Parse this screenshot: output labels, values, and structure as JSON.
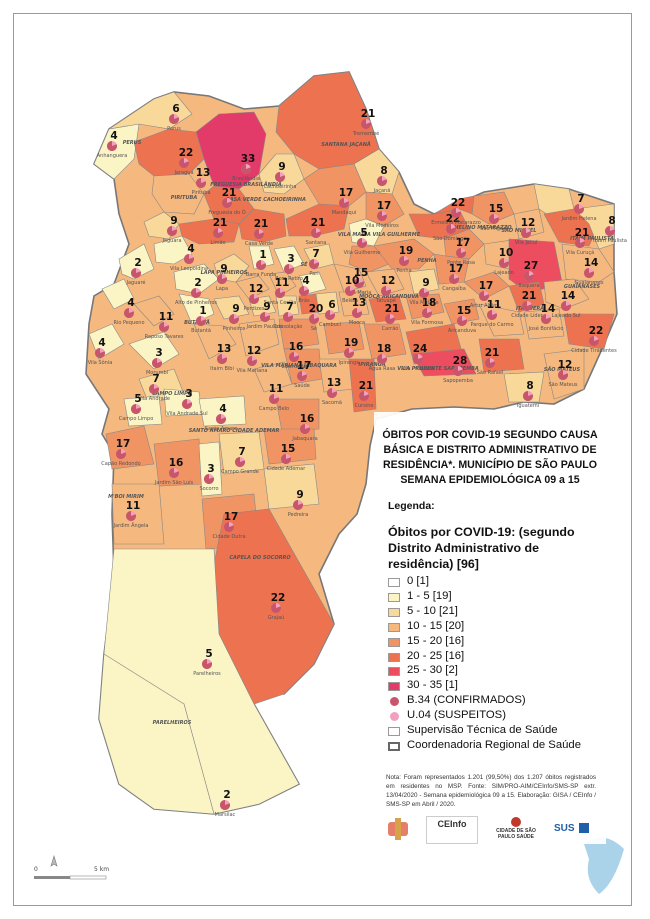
{
  "title": "ÓBITOS POR COVID-19 SEGUNDO CAUSA BÁSICA E DISTRITO ADMINISTRATIVO DE RESIDÊNCIA*. MUNICÍPIO DE SÃO PAULO SEMANA EPIDEMIOLÓGICA 09 a 15",
  "legend_heading": "Legenda:",
  "legend_subtitle": "Óbitos por COVID-19: (segundo Distrito Administrativo de residência) [96]",
  "legend": [
    {
      "label": "0 [1]",
      "color": "#ffffff",
      "kind": "swatch"
    },
    {
      "label": "1 - 5  [19]",
      "color": "#fbf5c5",
      "kind": "swatch"
    },
    {
      "label": "5 - 10  [21]",
      "color": "#f9d99a",
      "kind": "swatch"
    },
    {
      "label": "10 - 15  [20]",
      "color": "#f5b87e",
      "kind": "swatch"
    },
    {
      "label": "15 - 20  [16]",
      "color": "#f19464",
      "kind": "swatch"
    },
    {
      "label": "20 - 25  [16]",
      "color": "#ed7250",
      "kind": "swatch"
    },
    {
      "label": "25 - 30  [2]",
      "color": "#ec4d5f",
      "kind": "swatch"
    },
    {
      "label": "30 - 35  [1]",
      "color": "#e23b6a",
      "kind": "swatch"
    },
    {
      "label": "B.34 (CONFIRMADOS)",
      "color": "#c8566a",
      "kind": "dot"
    },
    {
      "label": "U.04 (SUSPEITOS)",
      "color": "#f2a0c0",
      "kind": "dot"
    },
    {
      "label": "Supervisão Técnica de Saúde",
      "color": "#ffffff",
      "kind": "thin"
    },
    {
      "label": "Coordenadoria Regional de Saúde",
      "color": "#ffffff",
      "kind": "thick"
    }
  ],
  "note": "Nota: Foram representados 1.201 (99,50%) dos 1.207 óbitos registrados em residentes no MSP. Fonte: SIM/PRO-AIM/CEInfo/SMS-SP extr. 13/04/2020 - Semana epidemiológica 09 a 15. Elaboração: GISA / CEInfo / SMS-SP em Abril / 2020.",
  "logos": [
    "CEInfo",
    "CIDADE DE SÃO PAULO SAÚDE",
    "SUS"
  ],
  "scale": {
    "start": "0",
    "end": "5 km"
  },
  "regions": [
    {
      "label": "PERUS"
    },
    {
      "label": "FREGUESIA BRASILÂNDIA"
    },
    {
      "label": "PIRITUBA"
    },
    {
      "label": "SANTANA JAÇANÃ"
    },
    {
      "label": "CASA VERDE CACHOEIRINHA"
    },
    {
      "label": "VILA MARIA VILA GUILHERME"
    },
    {
      "label": "ERMELINO MATARAZZO"
    },
    {
      "label": "SÃO MIGUEL"
    },
    {
      "label": "ITAIM PAULISTA"
    },
    {
      "label": "GUAIANASES"
    },
    {
      "label": "ITAQUERA"
    },
    {
      "label": "PENHA"
    },
    {
      "label": "MOOCA ARICANDUVA"
    },
    {
      "label": "LAPA PINHEIROS"
    },
    {
      "label": "SÉ"
    },
    {
      "label": "BUTANTÃ"
    },
    {
      "label": "VILA MARIANA JABAQUARA"
    },
    {
      "label": "IPIRANGA"
    },
    {
      "label": "VILA PRUDENTE SAPOPEMBA"
    },
    {
      "label": "SÃO MATEUS"
    },
    {
      "label": "CAMPO LIMPO"
    },
    {
      "label": "SANTO AMARO CIDADE ADEMAR"
    },
    {
      "label": "M'BOI MIRIM"
    },
    {
      "label": "CAPELA DO SOCORRO"
    },
    {
      "label": "PARELHEIROS"
    }
  ],
  "districts": [
    {
      "name": "Anhanguera",
      "value": 4,
      "color": "#fbf5c5"
    },
    {
      "name": "Perus",
      "value": 6,
      "color": "#f9d99a"
    },
    {
      "name": "Brasilândia",
      "value": 33,
      "color": "#e23b6a"
    },
    {
      "name": "Jaraguá",
      "value": 22,
      "color": "#ed7250"
    },
    {
      "name": "Tremembé",
      "value": 21,
      "color": "#ed7250"
    },
    {
      "name": "Jaçanã",
      "value": 8,
      "color": "#f9d99a"
    },
    {
      "name": "Freguesia do Ó",
      "value": 21,
      "color": "#ed7250"
    },
    {
      "name": "Cachoeirinha",
      "value": 9,
      "color": "#f9d99a"
    },
    {
      "name": "Pirituba",
      "value": 13,
      "color": "#f5b87e"
    },
    {
      "name": "Mandaqui",
      "value": 17,
      "color": "#f19464"
    },
    {
      "name": "Vila Medeiros",
      "value": 17,
      "color": "#f19464"
    },
    {
      "name": "São Domingos",
      "value": 22,
      "color": "#ed7250"
    },
    {
      "name": "São Miguel",
      "value": 15,
      "color": "#f19464"
    },
    {
      "name": "Jardim Helena",
      "value": 7,
      "color": "#f9d99a"
    },
    {
      "name": "Ermelino Matarazzo",
      "value": 22,
      "color": "#ed7250"
    },
    {
      "name": "Vila Jacuí",
      "value": 12,
      "color": "#f5b87e"
    },
    {
      "name": "Vila Curuçá",
      "value": 21,
      "color": "#ed7250"
    },
    {
      "name": "Itaim Paulista",
      "value": 8,
      "color": "#f9d99a"
    },
    {
      "name": "Jaguara",
      "value": 9,
      "color": "#f9d99a"
    },
    {
      "name": "Limão",
      "value": 21,
      "color": "#ed7250"
    },
    {
      "name": "Casa Verde",
      "value": 21,
      "color": "#ed7250"
    },
    {
      "name": "Santana",
      "value": 21,
      "color": "#ed7250"
    },
    {
      "name": "Vila Guilherme",
      "value": 5,
      "color": "#fbf5c5"
    },
    {
      "name": "Vila Maria",
      "value": 15,
      "color": "#f19464"
    },
    {
      "name": "Ponte Rasa",
      "value": 17,
      "color": "#f19464"
    },
    {
      "name": "Lajeado",
      "value": 10,
      "color": "#f5b87e"
    },
    {
      "name": "Jaguaré",
      "value": 2,
      "color": "#fbf5c5"
    },
    {
      "name": "Vila Leopoldina",
      "value": 4,
      "color": "#fbf5c5"
    },
    {
      "name": "Lapa",
      "value": 9,
      "color": "#f9d99a"
    },
    {
      "name": "Barra Funda",
      "value": 1,
      "color": "#fbf5c5"
    },
    {
      "name": "Bom Retiro",
      "value": 3,
      "color": "#fbf5c5"
    },
    {
      "name": "Pari",
      "value": 7,
      "color": "#f9d99a"
    },
    {
      "name": "Penha",
      "value": 19,
      "color": "#f19464"
    },
    {
      "name": "Cangaíba",
      "value": 17,
      "color": "#f19464"
    },
    {
      "name": "Itaquera",
      "value": 27,
      "color": "#ec4d5f"
    },
    {
      "name": "Guaianases",
      "value": 14,
      "color": "#f5b87e"
    },
    {
      "name": "Rio Pequeno",
      "value": 4,
      "color": "#fbf5c5"
    },
    {
      "name": "Alto de Pinheiros",
      "value": 2,
      "color": "#fbf5c5"
    },
    {
      "name": "Perdizes",
      "value": 12,
      "color": "#f5b87e"
    },
    {
      "name": "Santa Cecília",
      "value": 11,
      "color": "#f5b87e"
    },
    {
      "name": "Brás",
      "value": 4,
      "color": "#fbf5c5"
    },
    {
      "name": "Belém",
      "value": 10,
      "color": "#f5b87e"
    },
    {
      "name": "Tatuapé",
      "value": 12,
      "color": "#f5b87e"
    },
    {
      "name": "Vila Matilde",
      "value": 9,
      "color": "#f9d99a"
    },
    {
      "name": "Artur Alvim",
      "value": 17,
      "color": "#f19464"
    },
    {
      "name": "Cidade Líder",
      "value": 21,
      "color": "#ed7250"
    },
    {
      "name": "Lajeado Sul",
      "value": 14,
      "color": "#f5b87e"
    },
    {
      "name": "Raposo Tavares",
      "value": 11,
      "color": "#f5b87e"
    },
    {
      "name": "Butantã",
      "value": 1,
      "color": "#fbf5c5"
    },
    {
      "name": "Pinheiros",
      "value": 9,
      "color": "#f9d99a"
    },
    {
      "name": "Jardim Paulista",
      "value": 9,
      "color": "#f9d99a"
    },
    {
      "name": "Consolação",
      "value": 7,
      "color": "#f9d99a"
    },
    {
      "name": "Sé",
      "value": 20,
      "color": "#ed7250"
    },
    {
      "name": "Cambuci",
      "value": 6,
      "color": "#f9d99a"
    },
    {
      "name": "Mooca",
      "value": 13,
      "color": "#f5b87e"
    },
    {
      "name": "Carrão",
      "value": 21,
      "color": "#ed7250"
    },
    {
      "name": "Vila Formosa",
      "value": 18,
      "color": "#f19464"
    },
    {
      "name": "Aricanduva",
      "value": 15,
      "color": "#f19464"
    },
    {
      "name": "Parque do Carmo",
      "value": 11,
      "color": "#f5b87e"
    },
    {
      "name": "José Bonifácio",
      "value": 14,
      "color": "#f5b87e"
    },
    {
      "name": "Vila Sônia",
      "value": 4,
      "color": "#fbf5c5"
    },
    {
      "name": "Morumbi",
      "value": 3,
      "color": "#fbf5c5"
    },
    {
      "name": "Itaim Bibi",
      "value": 13,
      "color": "#f5b87e"
    },
    {
      "name": "Vila Mariana",
      "value": 12,
      "color": "#f5b87e"
    },
    {
      "name": "Liberdade",
      "value": 16,
      "color": "#f19464"
    },
    {
      "name": "Ipiranga",
      "value": 19,
      "color": "#f19464"
    },
    {
      "name": "Água Rasa",
      "value": 18,
      "color": "#f19464"
    },
    {
      "name": "Vila Prudente",
      "value": 24,
      "color": "#ed7250"
    },
    {
      "name": "Sapopemba",
      "value": 28,
      "color": "#ec4d5f"
    },
    {
      "name": "São Rafael",
      "value": 21,
      "color": "#ed7250"
    },
    {
      "name": "Cidade Tiradentes",
      "value": 22,
      "color": "#ed7250"
    },
    {
      "name": "Vila Andrade",
      "value": 7,
      "color": "#f9d99a"
    },
    {
      "name": "Campo Belo",
      "value": 11,
      "color": "#f5b87e"
    },
    {
      "name": "Saúde",
      "value": 17,
      "color": "#f19464"
    },
    {
      "name": "Sacomã",
      "value": 13,
      "color": "#f5b87e"
    },
    {
      "name": "Cursino",
      "value": 21,
      "color": "#ed7250"
    },
    {
      "name": "São Mateus",
      "value": 12,
      "color": "#f5b87e"
    },
    {
      "name": "Iguatemi",
      "value": 8,
      "color": "#f9d99a"
    },
    {
      "name": "Campo Limpo",
      "value": 5,
      "color": "#fbf5c5"
    },
    {
      "name": "Vila Andrade Sul",
      "value": 3,
      "color": "#fbf5c5"
    },
    {
      "name": "Santo Amaro",
      "value": 4,
      "color": "#fbf5c5"
    },
    {
      "name": "Jabaquara",
      "value": 16,
      "color": "#f19464"
    },
    {
      "name": "Capão Redondo",
      "value": 17,
      "color": "#f19464"
    },
    {
      "name": "Campo Grande",
      "value": 7,
      "color": "#f9d99a"
    },
    {
      "name": "Cidade Ademar",
      "value": 15,
      "color": "#f19464"
    },
    {
      "name": "Jardim São Luís",
      "value": 16,
      "color": "#f19464"
    },
    {
      "name": "Socorro",
      "value": 3,
      "color": "#fbf5c5"
    },
    {
      "name": "Pedreira",
      "value": 9,
      "color": "#f9d99a"
    },
    {
      "name": "Jardim Ângela",
      "value": 11,
      "color": "#f5b87e"
    },
    {
      "name": "Cidade Dutra",
      "value": 17,
      "color": "#f19464"
    },
    {
      "name": "Grajaú",
      "value": 22,
      "color": "#ed7250"
    },
    {
      "name": "Parelheiros",
      "value": 5,
      "color": "#fbf5c5"
    },
    {
      "name": "Marsilac",
      "value": 2,
      "color": "#fbf5c5"
    }
  ]
}
